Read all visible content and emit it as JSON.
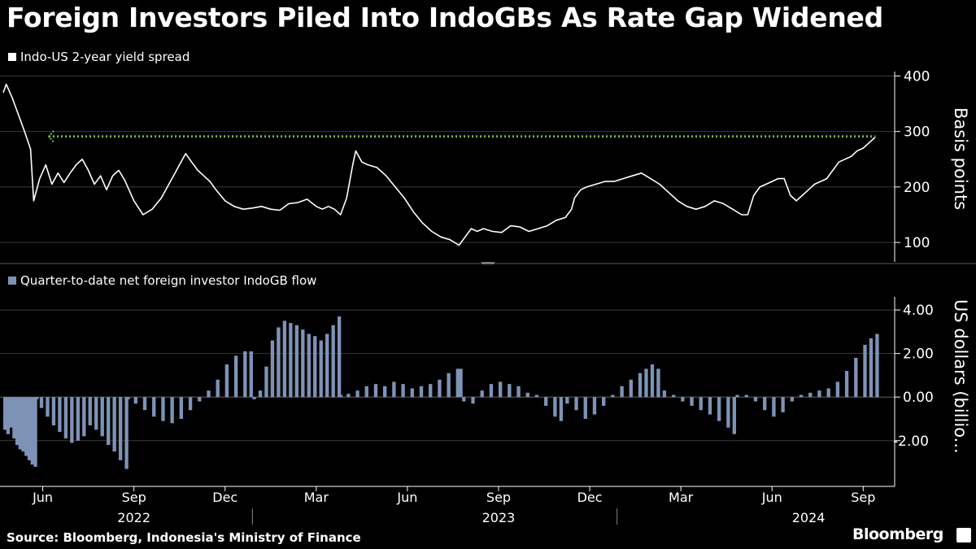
{
  "title": "Foreign Investors Piled Into IndoGBs As Rate Gap Widened",
  "source": "Source: Bloomberg, Indonesia's Ministry of Finance",
  "brand": "Bloomberg",
  "colors": {
    "background": "#000000",
    "line": "#ffffff",
    "bars": "#7d93b6",
    "reference": "#6abf3a",
    "grid": "#3a3a3a"
  },
  "chart_data": [
    {
      "type": "line",
      "legend": "Indo-US 2-year yield spread",
      "ylabel": "Basis points",
      "ylim": [
        65,
        405
      ],
      "yticks": [
        100,
        200,
        300,
        400
      ],
      "x_start_month_offset": 0,
      "x_end_month_offset": 28.8,
      "reference_line": {
        "value": 291,
        "x_from_month_offset": 1.5,
        "x_to_month_offset": 28.7,
        "style": "dotted-arrow"
      },
      "points": [
        [
          0.0,
          370
        ],
        [
          0.1,
          385
        ],
        [
          0.3,
          360
        ],
        [
          0.5,
          330
        ],
        [
          0.7,
          300
        ],
        [
          0.9,
          268
        ],
        [
          1.0,
          175
        ],
        [
          1.2,
          215
        ],
        [
          1.4,
          240
        ],
        [
          1.6,
          205
        ],
        [
          1.8,
          225
        ],
        [
          2.0,
          208
        ],
        [
          2.2,
          225
        ],
        [
          2.4,
          240
        ],
        [
          2.6,
          250
        ],
        [
          2.8,
          230
        ],
        [
          3.0,
          205
        ],
        [
          3.2,
          220
        ],
        [
          3.4,
          195
        ],
        [
          3.6,
          220
        ],
        [
          3.8,
          230
        ],
        [
          4.0,
          212
        ],
        [
          4.3,
          175
        ],
        [
          4.6,
          150
        ],
        [
          4.9,
          160
        ],
        [
          5.2,
          180
        ],
        [
          5.5,
          210
        ],
        [
          5.8,
          240
        ],
        [
          6.0,
          260
        ],
        [
          6.2,
          245
        ],
        [
          6.4,
          230
        ],
        [
          6.6,
          220
        ],
        [
          6.8,
          210
        ],
        [
          7.0,
          195
        ],
        [
          7.3,
          175
        ],
        [
          7.6,
          165
        ],
        [
          7.9,
          160
        ],
        [
          8.2,
          162
        ],
        [
          8.5,
          165
        ],
        [
          8.8,
          160
        ],
        [
          9.1,
          158
        ],
        [
          9.4,
          170
        ],
        [
          9.7,
          172
        ],
        [
          10.0,
          178
        ],
        [
          10.3,
          165
        ],
        [
          10.5,
          160
        ],
        [
          10.7,
          165
        ],
        [
          10.9,
          160
        ],
        [
          11.1,
          150
        ],
        [
          11.3,
          180
        ],
        [
          11.5,
          240
        ],
        [
          11.6,
          265
        ],
        [
          11.8,
          245
        ],
        [
          12.0,
          240
        ],
        [
          12.3,
          235
        ],
        [
          12.6,
          220
        ],
        [
          12.9,
          200
        ],
        [
          13.2,
          180
        ],
        [
          13.5,
          155
        ],
        [
          13.8,
          135
        ],
        [
          14.1,
          120
        ],
        [
          14.4,
          110
        ],
        [
          14.7,
          105
        ],
        [
          15.0,
          95
        ],
        [
          15.2,
          110
        ],
        [
          15.4,
          125
        ],
        [
          15.6,
          120
        ],
        [
          15.8,
          125
        ],
        [
          16.1,
          120
        ],
        [
          16.4,
          118
        ],
        [
          16.7,
          130
        ],
        [
          17.0,
          128
        ],
        [
          17.3,
          120
        ],
        [
          17.6,
          125
        ],
        [
          17.9,
          130
        ],
        [
          18.2,
          140
        ],
        [
          18.5,
          145
        ],
        [
          18.7,
          160
        ],
        [
          18.8,
          180
        ],
        [
          19.0,
          195
        ],
        [
          19.2,
          200
        ],
        [
          19.5,
          205
        ],
        [
          19.8,
          210
        ],
        [
          20.1,
          210
        ],
        [
          20.4,
          215
        ],
        [
          20.7,
          220
        ],
        [
          21.0,
          225
        ],
        [
          21.3,
          215
        ],
        [
          21.6,
          205
        ],
        [
          21.9,
          190
        ],
        [
          22.2,
          175
        ],
        [
          22.5,
          165
        ],
        [
          22.8,
          160
        ],
        [
          23.1,
          165
        ],
        [
          23.4,
          175
        ],
        [
          23.7,
          170
        ],
        [
          24.0,
          160
        ],
        [
          24.3,
          150
        ],
        [
          24.5,
          150
        ],
        [
          24.7,
          185
        ],
        [
          24.9,
          200
        ],
        [
          25.1,
          205
        ],
        [
          25.3,
          210
        ],
        [
          25.5,
          215
        ],
        [
          25.7,
          215
        ],
        [
          25.9,
          185
        ],
        [
          26.1,
          175
        ],
        [
          26.3,
          185
        ],
        [
          26.5,
          195
        ],
        [
          26.7,
          205
        ],
        [
          26.9,
          210
        ],
        [
          27.1,
          215
        ],
        [
          27.3,
          230
        ],
        [
          27.5,
          245
        ],
        [
          27.7,
          250
        ],
        [
          27.9,
          255
        ],
        [
          28.1,
          265
        ],
        [
          28.3,
          270
        ],
        [
          28.5,
          280
        ],
        [
          28.7,
          290
        ]
      ]
    },
    {
      "type": "bar",
      "legend": "Quarter-to-date net foreign investor IndoGB flow",
      "ylabel": "US dollars (billio...",
      "ylim": [
        -4.1,
        4.6
      ],
      "yticks": [
        4.0,
        2.0,
        0.0,
        -2.0
      ],
      "ytick_labels": [
        "4.00",
        "2.00",
        "0.00",
        "-2.00"
      ],
      "x_start_month_offset": 0,
      "x_end_month_offset": 28.8,
      "points": [
        [
          0.0,
          -1.5
        ],
        [
          0.1,
          -1.7
        ],
        [
          0.2,
          -1.4
        ],
        [
          0.3,
          -1.9
        ],
        [
          0.4,
          -2.2
        ],
        [
          0.5,
          -2.4
        ],
        [
          0.6,
          -2.5
        ],
        [
          0.7,
          -2.7
        ],
        [
          0.8,
          -2.9
        ],
        [
          0.9,
          -3.1
        ],
        [
          1.0,
          -3.2
        ],
        [
          1.05,
          -0.1
        ],
        [
          1.2,
          -0.5
        ],
        [
          1.4,
          -0.9
        ],
        [
          1.6,
          -1.3
        ],
        [
          1.8,
          -1.6
        ],
        [
          2.0,
          -1.9
        ],
        [
          2.2,
          -2.1
        ],
        [
          2.4,
          -2.0
        ],
        [
          2.6,
          -1.8
        ],
        [
          2.8,
          -1.3
        ],
        [
          3.0,
          -1.5
        ],
        [
          3.2,
          -1.8
        ],
        [
          3.4,
          -2.2
        ],
        [
          3.6,
          -2.5
        ],
        [
          3.8,
          -2.9
        ],
        [
          4.0,
          -3.3
        ],
        [
          4.05,
          -0.1
        ],
        [
          4.3,
          -0.3
        ],
        [
          4.6,
          -0.6
        ],
        [
          4.9,
          -0.9
        ],
        [
          5.2,
          -1.1
        ],
        [
          5.5,
          -1.2
        ],
        [
          5.8,
          -1.0
        ],
        [
          6.1,
          -0.6
        ],
        [
          6.4,
          -0.2
        ],
        [
          6.7,
          0.3
        ],
        [
          7.0,
          0.8
        ],
        [
          7.3,
          1.5
        ],
        [
          7.6,
          1.9
        ],
        [
          7.9,
          2.1
        ],
        [
          8.1,
          2.1
        ],
        [
          8.2,
          -0.1
        ],
        [
          8.4,
          0.3
        ],
        [
          8.6,
          1.4
        ],
        [
          8.8,
          2.6
        ],
        [
          9.0,
          3.2
        ],
        [
          9.2,
          3.5
        ],
        [
          9.4,
          3.4
        ],
        [
          9.6,
          3.3
        ],
        [
          9.8,
          3.1
        ],
        [
          10.0,
          2.9
        ],
        [
          10.2,
          2.8
        ],
        [
          10.4,
          2.6
        ],
        [
          10.6,
          2.9
        ],
        [
          10.8,
          3.3
        ],
        [
          11.0,
          3.7
        ],
        [
          11.05,
          0.1
        ],
        [
          11.3,
          0.15
        ],
        [
          11.6,
          0.3
        ],
        [
          11.9,
          0.5
        ],
        [
          12.2,
          0.6
        ],
        [
          12.5,
          0.5
        ],
        [
          12.8,
          0.7
        ],
        [
          13.1,
          0.6
        ],
        [
          13.4,
          0.4
        ],
        [
          13.7,
          0.5
        ],
        [
          14.0,
          0.6
        ],
        [
          14.3,
          0.8
        ],
        [
          14.6,
          1.1
        ],
        [
          14.9,
          1.3
        ],
        [
          15.0,
          1.3
        ],
        [
          15.1,
          -0.2
        ],
        [
          15.4,
          -0.3
        ],
        [
          15.7,
          0.3
        ],
        [
          16.0,
          0.6
        ],
        [
          16.3,
          0.7
        ],
        [
          16.6,
          0.6
        ],
        [
          16.9,
          0.5
        ],
        [
          17.2,
          0.2
        ],
        [
          17.5,
          0.1
        ],
        [
          17.8,
          -0.4
        ],
        [
          18.1,
          -0.9
        ],
        [
          18.3,
          -1.1
        ],
        [
          18.5,
          -0.3
        ],
        [
          18.8,
          -0.6
        ],
        [
          19.1,
          -1.0
        ],
        [
          19.4,
          -0.8
        ],
        [
          19.7,
          -0.4
        ],
        [
          20.0,
          0.1
        ],
        [
          20.3,
          0.5
        ],
        [
          20.6,
          0.8
        ],
        [
          20.9,
          1.1
        ],
        [
          21.1,
          1.3
        ],
        [
          21.3,
          1.5
        ],
        [
          21.5,
          1.3
        ],
        [
          21.7,
          0.3
        ],
        [
          22.0,
          0.1
        ],
        [
          22.3,
          -0.2
        ],
        [
          22.6,
          -0.4
        ],
        [
          22.9,
          -0.6
        ],
        [
          23.2,
          -0.8
        ],
        [
          23.5,
          -1.1
        ],
        [
          23.8,
          -1.4
        ],
        [
          24.0,
          -1.7
        ],
        [
          24.1,
          0.1
        ],
        [
          24.4,
          0.1
        ],
        [
          24.7,
          -0.2
        ],
        [
          25.0,
          -0.6
        ],
        [
          25.3,
          -0.9
        ],
        [
          25.6,
          -0.7
        ],
        [
          25.9,
          -0.2
        ],
        [
          26.2,
          0.1
        ],
        [
          26.5,
          0.2
        ],
        [
          26.8,
          0.3
        ],
        [
          27.1,
          0.4
        ],
        [
          27.4,
          0.7
        ],
        [
          27.7,
          1.2
        ],
        [
          28.0,
          1.8
        ],
        [
          28.3,
          2.4
        ],
        [
          28.5,
          2.7
        ],
        [
          28.7,
          2.9
        ]
      ]
    }
  ],
  "x_axis": {
    "months": [
      "Jun",
      "Sep",
      "Dec",
      "Mar",
      "Jun",
      "Sep",
      "Dec",
      "Mar",
      "Jun",
      "Sep"
    ],
    "month_offsets": [
      1.3,
      4.3,
      7.3,
      10.3,
      13.3,
      16.3,
      19.3,
      22.3,
      25.3,
      28.3
    ],
    "years": [
      "2022",
      "2023",
      "2024"
    ],
    "year_offsets": [
      4.3,
      16.3,
      26.5
    ],
    "year_separators": [
      8.2,
      20.2
    ]
  }
}
